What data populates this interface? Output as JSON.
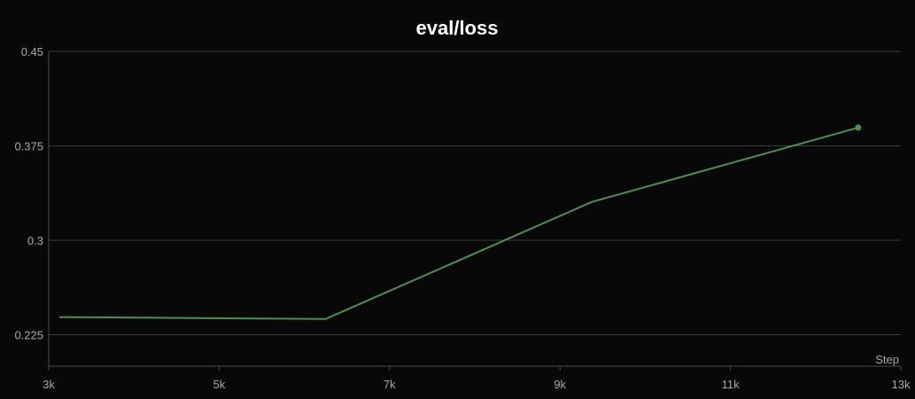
{
  "chart_data": {
    "type": "line",
    "title": "eval/loss",
    "xlabel": "Step",
    "ylabel": "",
    "xlim": [
      3000,
      13000
    ],
    "ylim": [
      0.2,
      0.45
    ],
    "x_ticks": [
      3000,
      5000,
      7000,
      9000,
      11000,
      13000
    ],
    "x_tick_labels": [
      "3k",
      "5k",
      "7k",
      "9k",
      "11k",
      "13k"
    ],
    "y_ticks": [
      0.225,
      0.3,
      0.375,
      0.45
    ],
    "y_tick_labels": [
      "0.225",
      "0.3",
      "0.375",
      "0.45"
    ],
    "grid": true,
    "legend": "none",
    "series": [
      {
        "color": "#4f8f4f",
        "x": [
          3125,
          6250,
          9375,
          12500
        ],
        "y": [
          0.239,
          0.2375,
          0.3305,
          0.3895
        ]
      }
    ]
  }
}
